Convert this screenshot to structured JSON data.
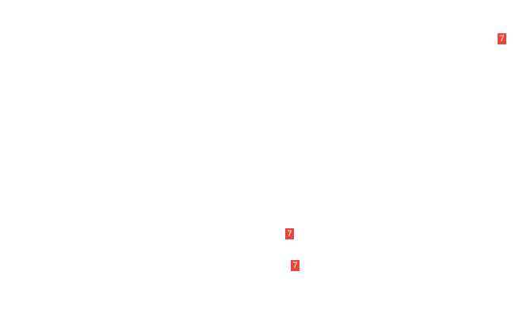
{
  "badge_color": "#e8453c",
  "badges": [
    {
      "label": "7"
    },
    {
      "label": "7"
    },
    {
      "label": "7"
    }
  ]
}
